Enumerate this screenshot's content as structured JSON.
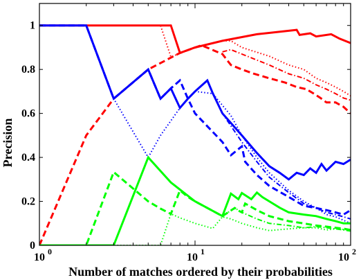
{
  "chart_data": {
    "type": "line",
    "title": "",
    "xlabel": "Number of matches ordered by their probabilities",
    "ylabel": "Precision",
    "xscale": "log",
    "xlim": [
      1,
      100
    ],
    "ylim": [
      0,
      1.1
    ],
    "xticks": [
      {
        "value": 1,
        "base": "10",
        "exp": "0"
      },
      {
        "value": 10,
        "base": "10",
        "exp": "1"
      },
      {
        "value": 100,
        "base": "10",
        "exp": "2"
      }
    ],
    "yticks": [
      {
        "value": 0,
        "label": "0"
      },
      {
        "value": 0.2,
        "label": "0.2"
      },
      {
        "value": 0.4,
        "label": "0.4"
      },
      {
        "value": 0.6,
        "label": "0.6"
      },
      {
        "value": 0.8,
        "label": "0.8"
      },
      {
        "value": 1,
        "label": "1"
      }
    ],
    "grid": false,
    "colors": {
      "red": "#ff0000",
      "blue": "#0000ff",
      "green": "#00ff00"
    },
    "series": [
      {
        "color": "red",
        "style": "solid",
        "points": [
          [
            1,
            1
          ],
          [
            7,
            1
          ],
          [
            8,
            0.875
          ],
          [
            10,
            0.9
          ],
          [
            15,
            0.93
          ],
          [
            25,
            0.96
          ],
          [
            45,
            0.98
          ],
          [
            47,
            0.957
          ],
          [
            55,
            0.964
          ],
          [
            60,
            0.95
          ],
          [
            75,
            0.96
          ],
          [
            85,
            0.94
          ],
          [
            100,
            0.92
          ]
        ]
      },
      {
        "color": "red",
        "style": "dashed",
        "points": [
          [
            1,
            0
          ],
          [
            2,
            0.5
          ],
          [
            3,
            0.667
          ],
          [
            5,
            0.8
          ],
          [
            8,
            0.875
          ],
          [
            11,
            0.91
          ],
          [
            15,
            0.87
          ],
          [
            17,
            0.82
          ],
          [
            20,
            0.8
          ],
          [
            24,
            0.78
          ],
          [
            30,
            0.76
          ],
          [
            38,
            0.74
          ],
          [
            45,
            0.72
          ],
          [
            52,
            0.71
          ],
          [
            58,
            0.69
          ],
          [
            64,
            0.67
          ],
          [
            70,
            0.65
          ],
          [
            80,
            0.65
          ],
          [
            90,
            0.63
          ],
          [
            100,
            0.6
          ]
        ]
      },
      {
        "color": "red",
        "style": "dotted",
        "points": [
          [
            1,
            1
          ],
          [
            6,
            1
          ],
          [
            7,
            0.857
          ],
          [
            10,
            0.9
          ],
          [
            15,
            0.93
          ],
          [
            17,
            0.93
          ],
          [
            20,
            0.9
          ],
          [
            30,
            0.86
          ],
          [
            40,
            0.82
          ],
          [
            50,
            0.8
          ],
          [
            60,
            0.76
          ],
          [
            70,
            0.74
          ],
          [
            80,
            0.72
          ],
          [
            90,
            0.7
          ],
          [
            100,
            0.68
          ]
        ]
      },
      {
        "color": "red",
        "style": "dashdot",
        "points": [
          [
            15,
            0.88
          ],
          [
            17,
            0.89
          ],
          [
            20,
            0.87
          ],
          [
            30,
            0.82
          ],
          [
            40,
            0.78
          ],
          [
            50,
            0.76
          ],
          [
            60,
            0.73
          ],
          [
            70,
            0.71
          ],
          [
            80,
            0.69
          ],
          [
            90,
            0.67
          ],
          [
            100,
            0.66
          ]
        ]
      },
      {
        "color": "blue",
        "style": "solid",
        "points": [
          [
            1,
            1
          ],
          [
            2,
            1
          ],
          [
            3,
            0.667
          ],
          [
            5,
            0.8
          ],
          [
            6,
            0.667
          ],
          [
            7,
            0.714
          ],
          [
            8,
            0.625
          ],
          [
            9,
            0.667
          ],
          [
            10,
            0.7
          ],
          [
            12,
            0.75
          ],
          [
            13,
            0.692
          ],
          [
            15,
            0.6
          ],
          [
            20,
            0.5
          ],
          [
            25,
            0.42
          ],
          [
            30,
            0.36
          ],
          [
            35,
            0.33
          ],
          [
            40,
            0.3
          ],
          [
            45,
            0.33
          ],
          [
            50,
            0.32
          ],
          [
            55,
            0.35
          ],
          [
            60,
            0.33
          ],
          [
            65,
            0.37
          ],
          [
            70,
            0.34
          ],
          [
            80,
            0.38
          ],
          [
            90,
            0.37
          ],
          [
            100,
            0.39
          ]
        ]
      },
      {
        "color": "blue",
        "style": "dashed",
        "points": [
          [
            1,
            1
          ],
          [
            2,
            1
          ],
          [
            3,
            0.667
          ],
          [
            5,
            0.8
          ],
          [
            6,
            0.667
          ],
          [
            7,
            0.714
          ],
          [
            8,
            0.75
          ],
          [
            9,
            0.667
          ],
          [
            10,
            0.6
          ],
          [
            15,
            0.47
          ],
          [
            17,
            0.41
          ],
          [
            20,
            0.45
          ],
          [
            21,
            0.38
          ],
          [
            25,
            0.32
          ],
          [
            30,
            0.27
          ],
          [
            40,
            0.22
          ],
          [
            50,
            0.18
          ],
          [
            60,
            0.17
          ],
          [
            70,
            0.16
          ],
          [
            80,
            0.15
          ],
          [
            90,
            0.14
          ],
          [
            100,
            0.16
          ]
        ]
      },
      {
        "color": "blue",
        "style": "dotted",
        "points": [
          [
            1,
            1
          ],
          [
            2,
            1
          ],
          [
            3,
            0.667
          ],
          [
            5,
            0.4
          ],
          [
            6,
            0.5
          ],
          [
            8,
            0.625
          ],
          [
            10,
            0.7
          ],
          [
            13,
            0.69
          ],
          [
            17,
            0.59
          ],
          [
            20,
            0.5
          ],
          [
            25,
            0.4
          ],
          [
            30,
            0.33
          ],
          [
            40,
            0.25
          ],
          [
            50,
            0.2
          ],
          [
            60,
            0.17
          ],
          [
            70,
            0.14
          ],
          [
            80,
            0.13
          ],
          [
            100,
            0.1
          ]
        ]
      },
      {
        "color": "blue",
        "style": "dashdot",
        "points": [
          [
            13,
            0.69
          ],
          [
            15,
            0.6
          ],
          [
            20,
            0.47
          ],
          [
            25,
            0.38
          ],
          [
            30,
            0.31
          ],
          [
            40,
            0.24
          ],
          [
            50,
            0.19
          ],
          [
            60,
            0.17
          ],
          [
            70,
            0.15
          ],
          [
            80,
            0.14
          ],
          [
            90,
            0.13
          ],
          [
            100,
            0.12
          ]
        ]
      },
      {
        "color": "green",
        "style": "solid",
        "points": [
          [
            1,
            0
          ],
          [
            3,
            0
          ],
          [
            5,
            0.4
          ],
          [
            7,
            0.286
          ],
          [
            10,
            0.2
          ],
          [
            15,
            0.133
          ],
          [
            17,
            0.235
          ],
          [
            19,
            0.21
          ],
          [
            20,
            0.238
          ],
          [
            23,
            0.21
          ],
          [
            25,
            0.24
          ],
          [
            27,
            0.22
          ],
          [
            30,
            0.2
          ],
          [
            35,
            0.171
          ],
          [
            40,
            0.15
          ],
          [
            50,
            0.14
          ],
          [
            60,
            0.133
          ],
          [
            70,
            0.12
          ],
          [
            80,
            0.11
          ],
          [
            90,
            0.1
          ],
          [
            100,
            0.1
          ]
        ]
      },
      {
        "color": "green",
        "style": "dashed",
        "points": [
          [
            1,
            0
          ],
          [
            2,
            0
          ],
          [
            3,
            0.333
          ],
          [
            5,
            0.2
          ],
          [
            6,
            0.167
          ],
          [
            7,
            0.143
          ],
          [
            8,
            0.25
          ],
          [
            9,
            0.22
          ],
          [
            10,
            0.2
          ],
          [
            15,
            0.133
          ],
          [
            18,
            0.17
          ],
          [
            19,
            0.158
          ],
          [
            20,
            0.15
          ],
          [
            21,
            0.19
          ],
          [
            25,
            0.16
          ],
          [
            30,
            0.133
          ],
          [
            40,
            0.11
          ],
          [
            50,
            0.1
          ],
          [
            60,
            0.09
          ],
          [
            70,
            0.085
          ],
          [
            80,
            0.08
          ],
          [
            90,
            0.076
          ],
          [
            100,
            0.07
          ]
        ]
      },
      {
        "color": "green",
        "style": "dotted",
        "points": [
          [
            1,
            0
          ],
          [
            6,
            0
          ],
          [
            7,
            0.143
          ],
          [
            8,
            0.125
          ],
          [
            10,
            0.1
          ],
          [
            13,
            0.077
          ],
          [
            15,
            0.13
          ],
          [
            17,
            0.12
          ],
          [
            20,
            0.1
          ],
          [
            25,
            0.08
          ],
          [
            30,
            0.067
          ],
          [
            40,
            0.075
          ],
          [
            50,
            0.08
          ],
          [
            60,
            0.08
          ],
          [
            70,
            0.07
          ],
          [
            80,
            0.075
          ],
          [
            100,
            0.07
          ]
        ]
      },
      {
        "color": "green",
        "style": "dashdot",
        "points": [
          [
            15,
            0.133
          ],
          [
            18,
            0.17
          ],
          [
            20,
            0.15
          ],
          [
            25,
            0.12
          ],
          [
            30,
            0.1
          ],
          [
            40,
            0.09
          ],
          [
            50,
            0.08
          ],
          [
            60,
            0.085
          ],
          [
            70,
            0.08
          ],
          [
            80,
            0.075
          ],
          [
            100,
            0.065
          ]
        ]
      }
    ]
  }
}
